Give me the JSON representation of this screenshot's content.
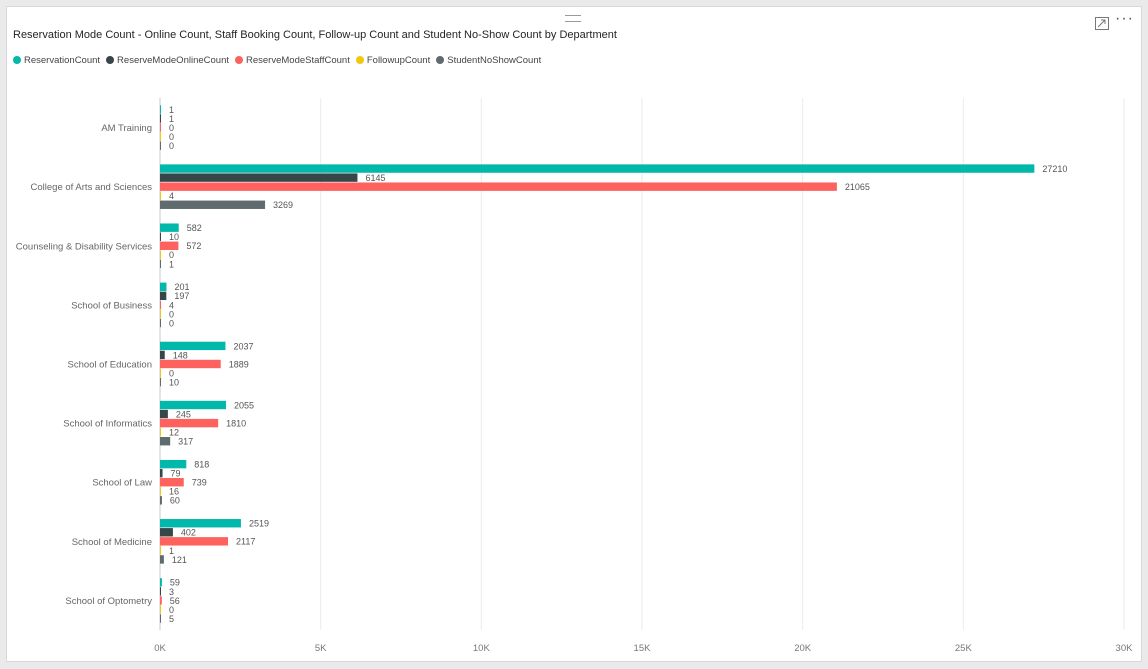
{
  "title": "Reservation Mode Count - Online Count, Staff Booking Count, Follow-up Count and Student No-Show Count by Department",
  "icons": {
    "drag": "drag-handle-icon",
    "focus": "focus-mode-icon",
    "more": "more-options-icon"
  },
  "more_glyph": "···",
  "chart_data": {
    "type": "bar",
    "orientation": "horizontal",
    "title": "Reservation Mode Count - Online Count, Staff Booking Count, Follow-up Count and Student No-Show Count by Department",
    "legend_position": "top-left",
    "grid": true,
    "xlim": [
      0,
      30000
    ],
    "x_ticks": [
      0,
      5000,
      10000,
      15000,
      20000,
      25000,
      30000
    ],
    "x_tick_labels": [
      "0K",
      "5K",
      "10K",
      "15K",
      "20K",
      "25K",
      "30K"
    ],
    "categories": [
      "AM Training",
      "College of Arts and Sciences",
      "Counseling & Disability Services",
      "School of Business",
      "School of Education",
      "School of Informatics",
      "School of Law",
      "School of Medicine",
      "School of Optometry"
    ],
    "series": [
      {
        "name": "ReservationCount",
        "color": "#01b8aa",
        "values": [
          1,
          27210,
          582,
          201,
          2037,
          2055,
          818,
          2519,
          59
        ]
      },
      {
        "name": "ReserveModeOnlineCount",
        "color": "#374649",
        "values": [
          1,
          6145,
          10,
          197,
          148,
          245,
          79,
          402,
          3
        ]
      },
      {
        "name": "ReserveModeStaffCount",
        "color": "#fd625e",
        "values": [
          0,
          21065,
          572,
          4,
          1889,
          1810,
          739,
          2117,
          56
        ]
      },
      {
        "name": "FollowupCount",
        "color": "#f2c80f",
        "values": [
          0,
          4,
          0,
          0,
          0,
          12,
          16,
          1,
          0
        ]
      },
      {
        "name": "StudentNoShowCount",
        "color": "#5f6b6d",
        "values": [
          0,
          3269,
          1,
          0,
          10,
          317,
          60,
          121,
          5
        ]
      }
    ]
  }
}
